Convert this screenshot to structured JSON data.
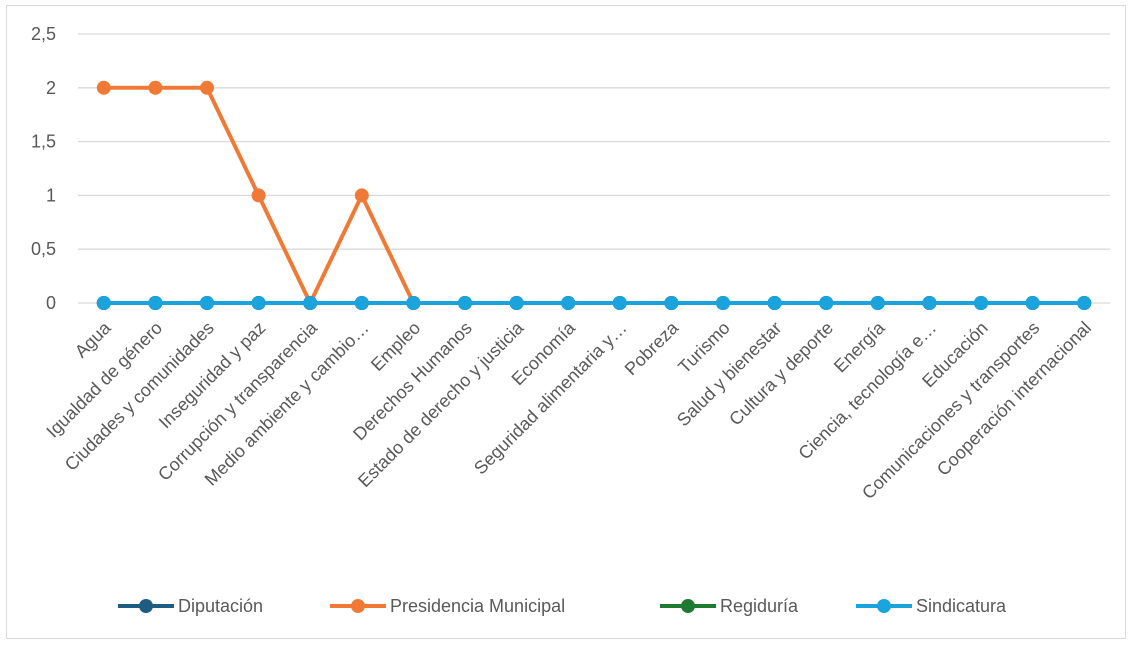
{
  "chart_data": {
    "type": "line",
    "title": "",
    "xlabel": "",
    "ylabel": "",
    "ylim": [
      0,
      2.5
    ],
    "ytick_labels": [
      "0",
      "0,5",
      "1",
      "1,5",
      "2",
      "2,5"
    ],
    "grid": true,
    "legend_position": "bottom",
    "categories": [
      "Agua",
      "Igualdad de género",
      "Ciudades y comunidades",
      "Inseguridad y paz",
      "Corrupción y transparencia",
      "Medio ambiente y cambio…",
      "Empleo",
      "Derechos Humanos",
      "Estado de derecho y justicia",
      "Economía",
      "Seguridad alimentaria y…",
      "Pobreza",
      "Turismo",
      "Salud y bienestar",
      "Cultura y deporte",
      "Energía",
      "Ciencia, tecnología e…",
      "Educación",
      "Comunicaciones y transportes",
      "Cooperación internacional"
    ],
    "series": [
      {
        "name": "Diputación",
        "color": "#1f5c82",
        "values": [
          0,
          0,
          0,
          0,
          0,
          0,
          0,
          0,
          0,
          0,
          0,
          0,
          0,
          0,
          0,
          0,
          0,
          0,
          0,
          0
        ]
      },
      {
        "name": "Presidencia Municipal",
        "color": "#f07a35",
        "values": [
          2,
          2,
          2,
          1,
          0,
          1,
          0,
          null,
          null,
          null,
          null,
          null,
          null,
          null,
          null,
          null,
          null,
          null,
          null,
          null
        ]
      },
      {
        "name": "Regiduría",
        "color": "#1e7a2e",
        "values": [
          0,
          0,
          0,
          0,
          0,
          0,
          0,
          0,
          0,
          0,
          0,
          0,
          0,
          0,
          0,
          0,
          0,
          0,
          0,
          0
        ]
      },
      {
        "name": "Sindicatura",
        "color": "#1aa3dc",
        "values": [
          0,
          0,
          0,
          0,
          0,
          0,
          0,
          0,
          0,
          0,
          0,
          0,
          0,
          0,
          0,
          0,
          0,
          0,
          0,
          0
        ]
      }
    ]
  }
}
